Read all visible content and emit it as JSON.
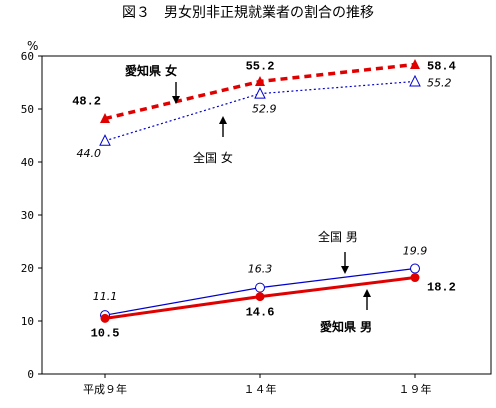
{
  "chart_data": {
    "type": "line",
    "title": "図３　男女別非正規就業者の割合の推移",
    "ylabel": "%",
    "ylim": [
      0,
      60
    ],
    "yticks": [
      0,
      10,
      20,
      30,
      40,
      50,
      60
    ],
    "categories": [
      "平成９年",
      "１４年",
      "１９年"
    ],
    "series": [
      {
        "name": "愛知県 女",
        "values": [
          48.2,
          55.2,
          58.4
        ],
        "labels": [
          "48.2",
          "55.2",
          "58.4"
        ],
        "color": "#e00000",
        "line": "dashed",
        "marker": "filled-triangle"
      },
      {
        "name": "全国 女",
        "values": [
          44.0,
          52.9,
          55.2
        ],
        "labels": [
          "44.0",
          "52.9",
          "55.2"
        ],
        "color": "#0000cc",
        "line": "dotted",
        "marker": "open-triangle"
      },
      {
        "name": "全国 男",
        "values": [
          11.1,
          16.3,
          19.9
        ],
        "labels": [
          "11.1",
          "16.3",
          "19.9"
        ],
        "color": "#0000cc",
        "line": "solid-thin",
        "marker": "open-circle"
      },
      {
        "name": "愛知県 男",
        "values": [
          10.5,
          14.6,
          18.2
        ],
        "labels": [
          "10.5",
          "14.6",
          "18.2"
        ],
        "color": "#e00000",
        "line": "solid-thick",
        "marker": "filled-circle"
      }
    ],
    "annotations": [
      "愛知県 女",
      "全国 女",
      "全国 男",
      "愛知県 男"
    ]
  }
}
